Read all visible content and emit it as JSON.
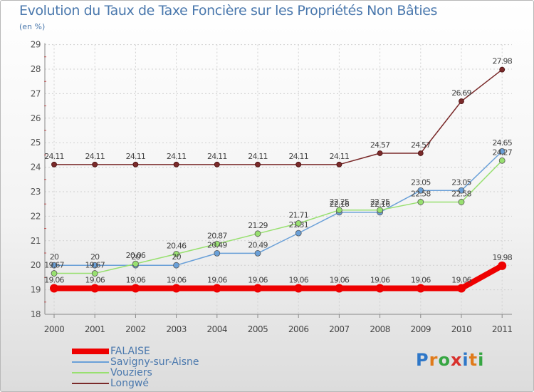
{
  "chart_data": {
    "type": "line",
    "title": "Evolution du Taux de Taxe Foncière sur les Propriétés Non Bâties",
    "subtitle": "(en %)",
    "categories": [
      "2000",
      "2001",
      "2002",
      "2003",
      "2004",
      "2005",
      "2006",
      "2007",
      "2008",
      "2009",
      "2010",
      "2011"
    ],
    "ylim": [
      18,
      29
    ],
    "yticks": [
      "18",
      "19",
      "20",
      "21",
      "22",
      "23",
      "24",
      "25",
      "26",
      "27",
      "28",
      "29"
    ],
    "grid": true,
    "legend_position": "bottom-left",
    "series": [
      {
        "name": "FALAISE",
        "color": "#ee0000",
        "values": [
          19.06,
          19.06,
          19.06,
          19.06,
          19.06,
          19.06,
          19.06,
          19.06,
          19.06,
          19.06,
          19.06,
          19.98
        ],
        "labels": [
          "19.06",
          "19.06",
          "19.06",
          "19.06",
          "19.06",
          "19.06",
          "19.06",
          "19.06",
          "19.06",
          "19.06",
          "19.06",
          "19.98"
        ]
      },
      {
        "name": "Savigny-sur-Aisne",
        "color": "#6aa0d8",
        "values": [
          20,
          20,
          20,
          20,
          20.49,
          20.49,
          21.31,
          22.16,
          22.16,
          23.05,
          23.05,
          24.65
        ],
        "labels": [
          "20",
          "20",
          "20",
          "20",
          "20.49",
          "20.49",
          "21.31",
          "22.16",
          "22.16",
          "23.05",
          "23.05",
          "24.65"
        ]
      },
      {
        "name": "Vouziers",
        "color": "#98e070",
        "values": [
          19.67,
          19.67,
          20.06,
          20.46,
          20.87,
          21.29,
          21.71,
          22.25,
          22.25,
          22.58,
          22.58,
          24.27
        ],
        "labels": [
          "19.67",
          "19.67",
          "20.06",
          "20.46",
          "20.87",
          "21.29",
          "21.71",
          "22.25",
          "22.25",
          "22.58",
          "22.58",
          "24.27"
        ]
      },
      {
        "name": "Longwé",
        "color": "#7a2a2a",
        "values": [
          24.11,
          24.11,
          24.11,
          24.11,
          24.11,
          24.11,
          24.11,
          24.11,
          24.57,
          24.57,
          26.69,
          27.98
        ],
        "labels": [
          "24.11",
          "24.11",
          "24.11",
          "24.11",
          "24.11",
          "24.11",
          "24.11",
          "24.11",
          "24.57",
          "24.57",
          "26.69",
          "27.98"
        ]
      }
    ]
  },
  "logo": {
    "letters": [
      "P",
      "r",
      "o",
      "x",
      "i",
      "t",
      "i"
    ],
    "colors": [
      "#2e77c8",
      "#e07a1a",
      "#36a642",
      "#d8302c",
      "#2e77c8",
      "#e07a1a",
      "#36a642"
    ]
  }
}
